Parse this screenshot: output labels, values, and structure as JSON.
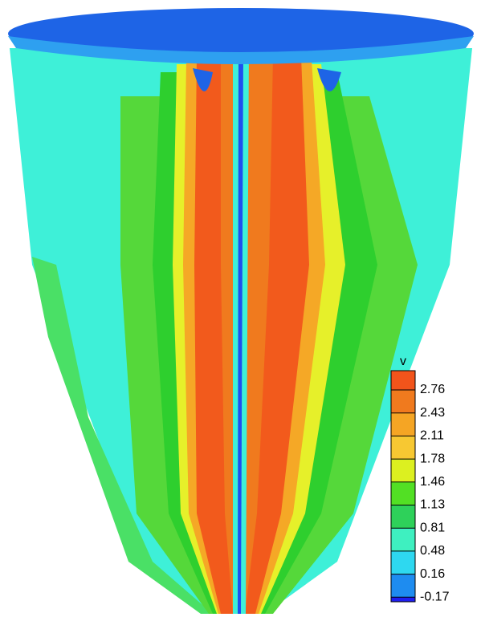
{
  "legend": {
    "title": "v",
    "levels": [
      "2.76",
      "2.43",
      "2.11",
      "1.78",
      "1.46",
      "1.13",
      "0.81",
      "0.48",
      "0.16",
      "-0.17"
    ]
  }
}
